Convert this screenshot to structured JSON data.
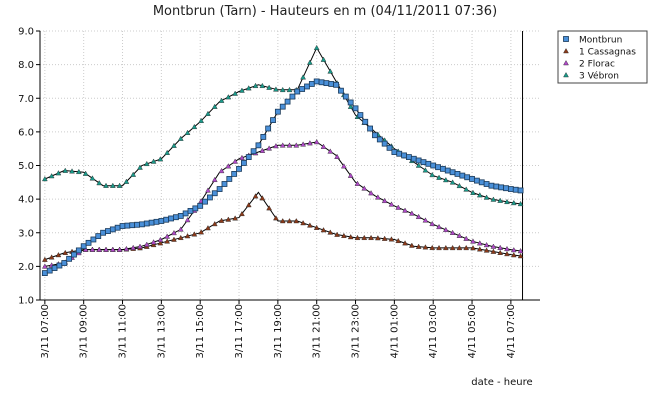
{
  "chart_data": {
    "type": "line",
    "title": "Montbrun (Tarn) - Hauteurs en m (04/11/2011 07:36)",
    "xlabel": "date - heure",
    "ylabel": "",
    "ylim": [
      1.0,
      9.0
    ],
    "yticks": [
      "1.0",
      "2.0",
      "3.0",
      "4.0",
      "5.0",
      "6.0",
      "7.0",
      "8.0",
      "9.0"
    ],
    "xlim": [
      -0.25,
      25.5
    ],
    "xtick_hours": [
      0,
      2,
      4,
      6,
      8,
      10,
      12,
      14,
      16,
      18,
      20,
      22,
      24
    ],
    "xtick_labels": [
      "3/11 07:00",
      "3/11 09:00",
      "3/11 11:00",
      "3/11 13:00",
      "3/11 15:00",
      "3/11 17:00",
      "3/11 19:00",
      "3/11 21:00",
      "3/11 23:00",
      "4/11 01:00",
      "4/11 03:00",
      "4/11 05:00",
      "4/11 07:00"
    ],
    "current_time_hours": 24.6,
    "grid": true,
    "legend_position": "right",
    "series": [
      {
        "name": "Montbrun",
        "color": "#4a90d9",
        "marker": "square",
        "x": [
          0,
          1,
          2,
          3,
          4,
          5,
          6,
          7,
          8,
          9,
          10,
          11,
          12,
          13,
          14,
          15,
          16,
          17,
          18,
          19,
          20,
          21,
          22,
          23,
          24,
          24.6
        ],
        "y": [
          1.8,
          2.1,
          2.6,
          3.0,
          3.2,
          3.25,
          3.35,
          3.5,
          3.8,
          4.3,
          4.9,
          5.6,
          6.6,
          7.2,
          7.5,
          7.4,
          6.7,
          5.9,
          5.4,
          5.2,
          5.0,
          4.8,
          4.6,
          4.4,
          4.3,
          4.25
        ]
      },
      {
        "name": "1 Cassagnas",
        "color": "#8b3a1a",
        "marker": "triangle",
        "x": [
          0,
          1,
          2,
          3,
          4,
          5,
          6,
          7,
          8,
          9,
          10,
          11,
          12,
          13,
          14,
          15,
          16,
          17,
          18,
          19,
          20,
          21,
          22,
          23,
          24,
          24.6
        ],
        "y": [
          2.2,
          2.4,
          2.5,
          2.5,
          2.5,
          2.55,
          2.7,
          2.85,
          3.0,
          3.35,
          3.45,
          4.2,
          3.35,
          3.35,
          3.15,
          2.95,
          2.85,
          2.85,
          2.8,
          2.6,
          2.55,
          2.55,
          2.55,
          2.45,
          2.35,
          2.3
        ]
      },
      {
        "name": "2 Florac",
        "color": "#b04ac8",
        "marker": "triangle",
        "x": [
          0,
          1,
          2,
          3,
          4,
          5,
          6,
          7,
          8,
          9,
          10,
          11,
          12,
          13,
          14,
          15,
          16,
          17,
          18,
          19,
          20,
          21,
          22,
          23,
          24,
          24.6
        ],
        "y": [
          2.0,
          2.1,
          2.5,
          2.5,
          2.5,
          2.6,
          2.8,
          3.1,
          3.9,
          4.8,
          5.2,
          5.4,
          5.6,
          5.6,
          5.7,
          5.3,
          4.5,
          4.1,
          3.8,
          3.55,
          3.25,
          3.0,
          2.75,
          2.6,
          2.5,
          2.45
        ]
      },
      {
        "name": "3 Vébron",
        "color": "#1a9a8a",
        "marker": "triangle",
        "x": [
          0,
          1,
          2,
          3,
          4,
          5,
          6,
          7,
          8,
          9,
          10,
          11,
          12,
          13,
          14,
          15,
          16,
          17,
          18,
          19,
          20,
          21,
          22,
          23,
          24,
          24.6
        ],
        "y": [
          4.6,
          4.85,
          4.8,
          4.4,
          4.4,
          5.0,
          5.2,
          5.8,
          6.3,
          6.9,
          7.2,
          7.4,
          7.25,
          7.25,
          8.5,
          7.5,
          6.5,
          6.0,
          5.5,
          5.1,
          4.7,
          4.5,
          4.2,
          4.0,
          3.9,
          3.85
        ]
      }
    ]
  }
}
